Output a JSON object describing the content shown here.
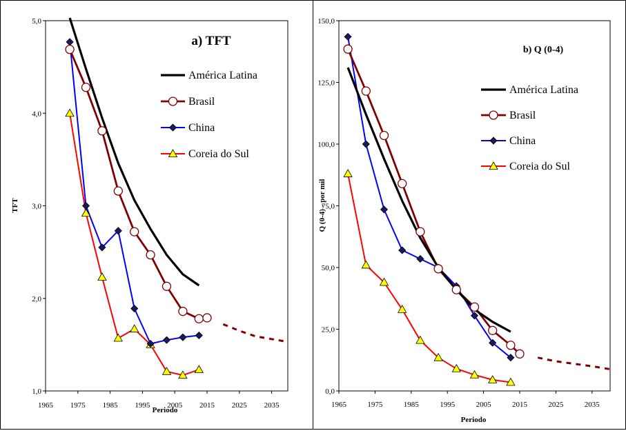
{
  "colors": {
    "america_latina": "#000000",
    "brasil": "#7f0000",
    "china": "#0000ff",
    "coreia": "#ff0000",
    "coreia_marker": "#ffff00"
  },
  "chart_data": [
    {
      "type": "line",
      "title": "a) TFT",
      "xlabel": "Periodo",
      "ylabel": "TFT",
      "xlim": [
        1965,
        2040
      ],
      "ylim": [
        1.0,
        5.0
      ],
      "xticks": [
        "1965",
        "1975",
        "1985",
        "1995",
        "2005",
        "2015",
        "2025",
        "2035"
      ],
      "yticks": [
        "1,0",
        "2,0",
        "3,0",
        "4,0",
        "5,0"
      ],
      "legend_position": "right",
      "series": [
        {
          "name": "América Latina",
          "key": "america_latina",
          "marker": "none",
          "x": [
            1972.5,
            1977.5,
            1982.5,
            1987.5,
            1992.5,
            1997.5,
            2002.5,
            2007.5,
            2012.5
          ],
          "y": [
            5.03,
            4.48,
            3.95,
            3.46,
            3.06,
            2.75,
            2.47,
            2.26,
            2.14
          ]
        },
        {
          "name": "Brasil",
          "key": "brasil",
          "marker": "open-circle",
          "x": [
            1972.5,
            1977.5,
            1982.5,
            1987.5,
            1992.5,
            1997.5,
            2002.5,
            2007.5,
            2012.5,
            2015
          ],
          "y": [
            4.69,
            4.28,
            3.81,
            3.16,
            2.72,
            2.47,
            2.13,
            1.86,
            1.78,
            1.79
          ]
        },
        {
          "name": "China",
          "key": "china",
          "marker": "diamond",
          "x": [
            1972.5,
            1977.5,
            1982.5,
            1987.5,
            1992.5,
            1997.5,
            2002.5,
            2007.5,
            2012.5
          ],
          "y": [
            4.77,
            3.0,
            2.55,
            2.73,
            1.89,
            1.51,
            1.55,
            1.58,
            1.6
          ]
        },
        {
          "name": "Coreia do Sul",
          "key": "coreia",
          "marker": "triangle",
          "x": [
            1972.5,
            1977.5,
            1982.5,
            1987.5,
            1992.5,
            1997.5,
            2002.5,
            2007.5,
            2012.5
          ],
          "y": [
            4.0,
            2.92,
            2.23,
            1.57,
            1.67,
            1.5,
            1.21,
            1.17,
            1.23
          ]
        }
      ],
      "projection": {
        "key": "brasil",
        "x": [
          2020,
          2025,
          2030,
          2035,
          2040
        ],
        "y": [
          1.72,
          1.65,
          1.59,
          1.56,
          1.53
        ]
      }
    },
    {
      "type": "line",
      "title": "b) Q (0-4)",
      "xlabel": "Periodo",
      "ylabel": "Q (0-4) - por mil",
      "xlim": [
        1965,
        2040
      ],
      "ylim": [
        0,
        150
      ],
      "xticks": [
        "1965",
        "1975",
        "1985",
        "1995",
        "2005",
        "2015",
        "2025",
        "2035"
      ],
      "yticks": [
        "0,0",
        "25,0",
        "50,0",
        "75,0",
        "100,0",
        "125,0",
        "150,0"
      ],
      "legend_position": "right",
      "series": [
        {
          "name": "América Latina",
          "key": "america_latina",
          "marker": "none",
          "x": [
            1967.5,
            1972.5,
            1977.5,
            1982.5,
            1987.5,
            1992.5,
            1997.5,
            2002.5,
            2007.5,
            2012.5
          ],
          "y": [
            131,
            112,
            94,
            77,
            62,
            50,
            41,
            33,
            28,
            24
          ]
        },
        {
          "name": "Brasil",
          "key": "brasil",
          "marker": "open-circle",
          "x": [
            1967.5,
            1972.5,
            1977.5,
            1982.5,
            1987.5,
            1992.5,
            1997.5,
            2002.5,
            2007.5,
            2012.5,
            2015
          ],
          "y": [
            138.5,
            121.5,
            103.5,
            84,
            64.5,
            49.5,
            41,
            34,
            24.5,
            18.5,
            15
          ]
        },
        {
          "name": "China",
          "key": "china",
          "marker": "diamond",
          "x": [
            1967.5,
            1972.5,
            1977.5,
            1982.5,
            1987.5,
            1992.5,
            1997.5,
            2002.5,
            2007.5,
            2012.5
          ],
          "y": [
            143.5,
            100,
            73.5,
            57,
            53.5,
            50,
            42.5,
            30.5,
            19.5,
            13.5
          ]
        },
        {
          "name": "Coreia do Sul",
          "key": "coreia",
          "marker": "triangle",
          "x": [
            1967.5,
            1972.5,
            1977.5,
            1982.5,
            1987.5,
            1992.5,
            1997.5,
            2002.5,
            2007.5,
            2012.5
          ],
          "y": [
            88,
            51,
            44,
            33,
            20.5,
            13.5,
            9,
            6.5,
            4.5,
            3.5
          ]
        }
      ],
      "projection": {
        "key": "brasil",
        "x": [
          2020,
          2025,
          2030,
          2035,
          2040
        ],
        "y": [
          13.5,
          12,
          11,
          10,
          8.8
        ]
      }
    }
  ]
}
